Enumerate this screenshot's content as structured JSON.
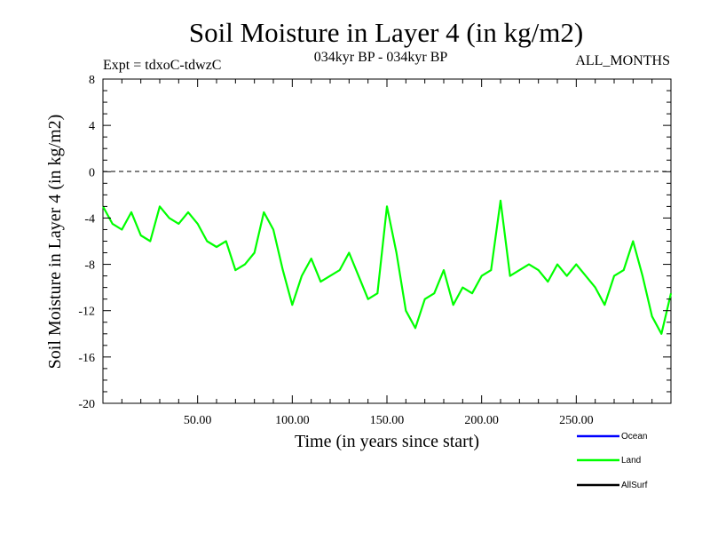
{
  "chart_data": {
    "type": "line",
    "title": "Soil Moisture in Layer 4 (in kg/m2)",
    "subtitle_left": "Expt = tdxoC-tdwzC",
    "subtitle_center": "034kyr BP - 034kyr BP",
    "subtitle_right": "ALL_MONTHS",
    "xlabel": "Time (in years since start)",
    "ylabel": "Soil Moisture in Layer 4 (in kg/m2)",
    "xlim": [
      0,
      300
    ],
    "ylim": [
      -20,
      8
    ],
    "x_ticks": [
      50,
      100,
      150,
      200,
      250
    ],
    "x_tick_labels": [
      "50.00",
      "100.00",
      "150.00",
      "200.00",
      "250.00"
    ],
    "y_ticks": [
      8,
      4,
      0,
      -4,
      -8,
      -12,
      -16,
      -20
    ],
    "y_tick_labels": [
      "8",
      "4",
      "0",
      "-4",
      "-8",
      "-12",
      "-16",
      "-20"
    ],
    "reference_line": {
      "y": 0,
      "style": "dashed"
    },
    "legend_position": "bottom-right",
    "series": [
      {
        "name": "Ocean",
        "color": "#0000ff",
        "values": []
      },
      {
        "name": "Land",
        "color": "#00ff00",
        "x": [
          0,
          5,
          10,
          15,
          20,
          25,
          30,
          35,
          40,
          45,
          50,
          55,
          60,
          65,
          70,
          75,
          80,
          85,
          90,
          95,
          100,
          105,
          110,
          115,
          120,
          125,
          130,
          135,
          140,
          145,
          150,
          155,
          160,
          165,
          170,
          175,
          180,
          185,
          190,
          195,
          200,
          205,
          210,
          215,
          220,
          225,
          230,
          235,
          240,
          245,
          250,
          255,
          260,
          265,
          270,
          275,
          280,
          285,
          290,
          295,
          300
        ],
        "values": [
          -3,
          -4.5,
          -5,
          -3.5,
          -5.5,
          -6,
          -3,
          -4,
          -4.5,
          -3.5,
          -4.5,
          -6,
          -6.5,
          -6,
          -8.5,
          -8,
          -7,
          -3.5,
          -5,
          -8.5,
          -11.5,
          -9,
          -7.5,
          -9.5,
          -9,
          -8.5,
          -7,
          -9,
          -11,
          -10.5,
          -3,
          -7,
          -12,
          -13.5,
          -11,
          -10.5,
          -8.5,
          -11.5,
          -10,
          -10.5,
          -9,
          -8.5,
          -2.5,
          -9,
          -8.5,
          -8,
          -8.5,
          -9.5,
          -8,
          -9,
          -8,
          -9,
          -10,
          -11.5,
          -9,
          -8.5,
          -6,
          -9,
          -12.5,
          -14,
          -10.5
        ]
      },
      {
        "name": "AllSurf",
        "color": "#000000",
        "values": []
      }
    ]
  }
}
